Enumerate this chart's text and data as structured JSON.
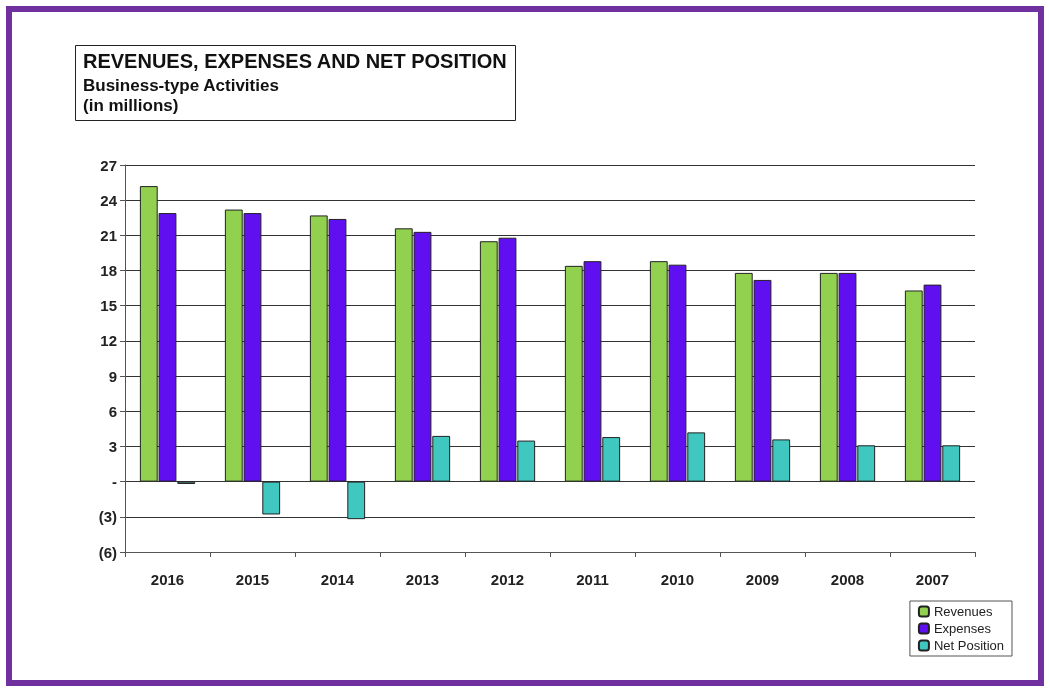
{
  "chart_data": {
    "type": "bar",
    "title": "REVENUES, EXPENSES AND NET POSITION",
    "subtitle": "Business-type Activities\n(in millions)",
    "categories": [
      "2016",
      "2015",
      "2014",
      "2013",
      "2012",
      "2011",
      "2010",
      "2009",
      "2008",
      "2007"
    ],
    "series": [
      {
        "name": "Revenues",
        "color": "#92d050",
        "values": [
          25.2,
          23.2,
          22.7,
          21.6,
          20.5,
          18.4,
          18.8,
          17.8,
          17.8,
          16.3
        ]
      },
      {
        "name": "Expenses",
        "color": "#6010f0",
        "values": [
          22.9,
          22.9,
          22.4,
          21.3,
          20.8,
          18.8,
          18.5,
          17.2,
          17.8,
          16.8
        ]
      },
      {
        "name": "Net Position",
        "color": "#40c8c0",
        "values": [
          -0.2,
          -2.8,
          -3.2,
          3.9,
          3.5,
          3.8,
          4.2,
          3.6,
          3.1,
          3.1
        ]
      }
    ],
    "ylim": [
      -6,
      27
    ],
    "yticks": [
      {
        "value": -6,
        "label": "(6)"
      },
      {
        "value": -3,
        "label": "(3)"
      },
      {
        "value": 0,
        "label": "-"
      },
      3,
      6,
      9,
      12,
      15,
      18,
      21,
      24,
      27
    ],
    "grid": "y",
    "legend": "bottom right"
  }
}
